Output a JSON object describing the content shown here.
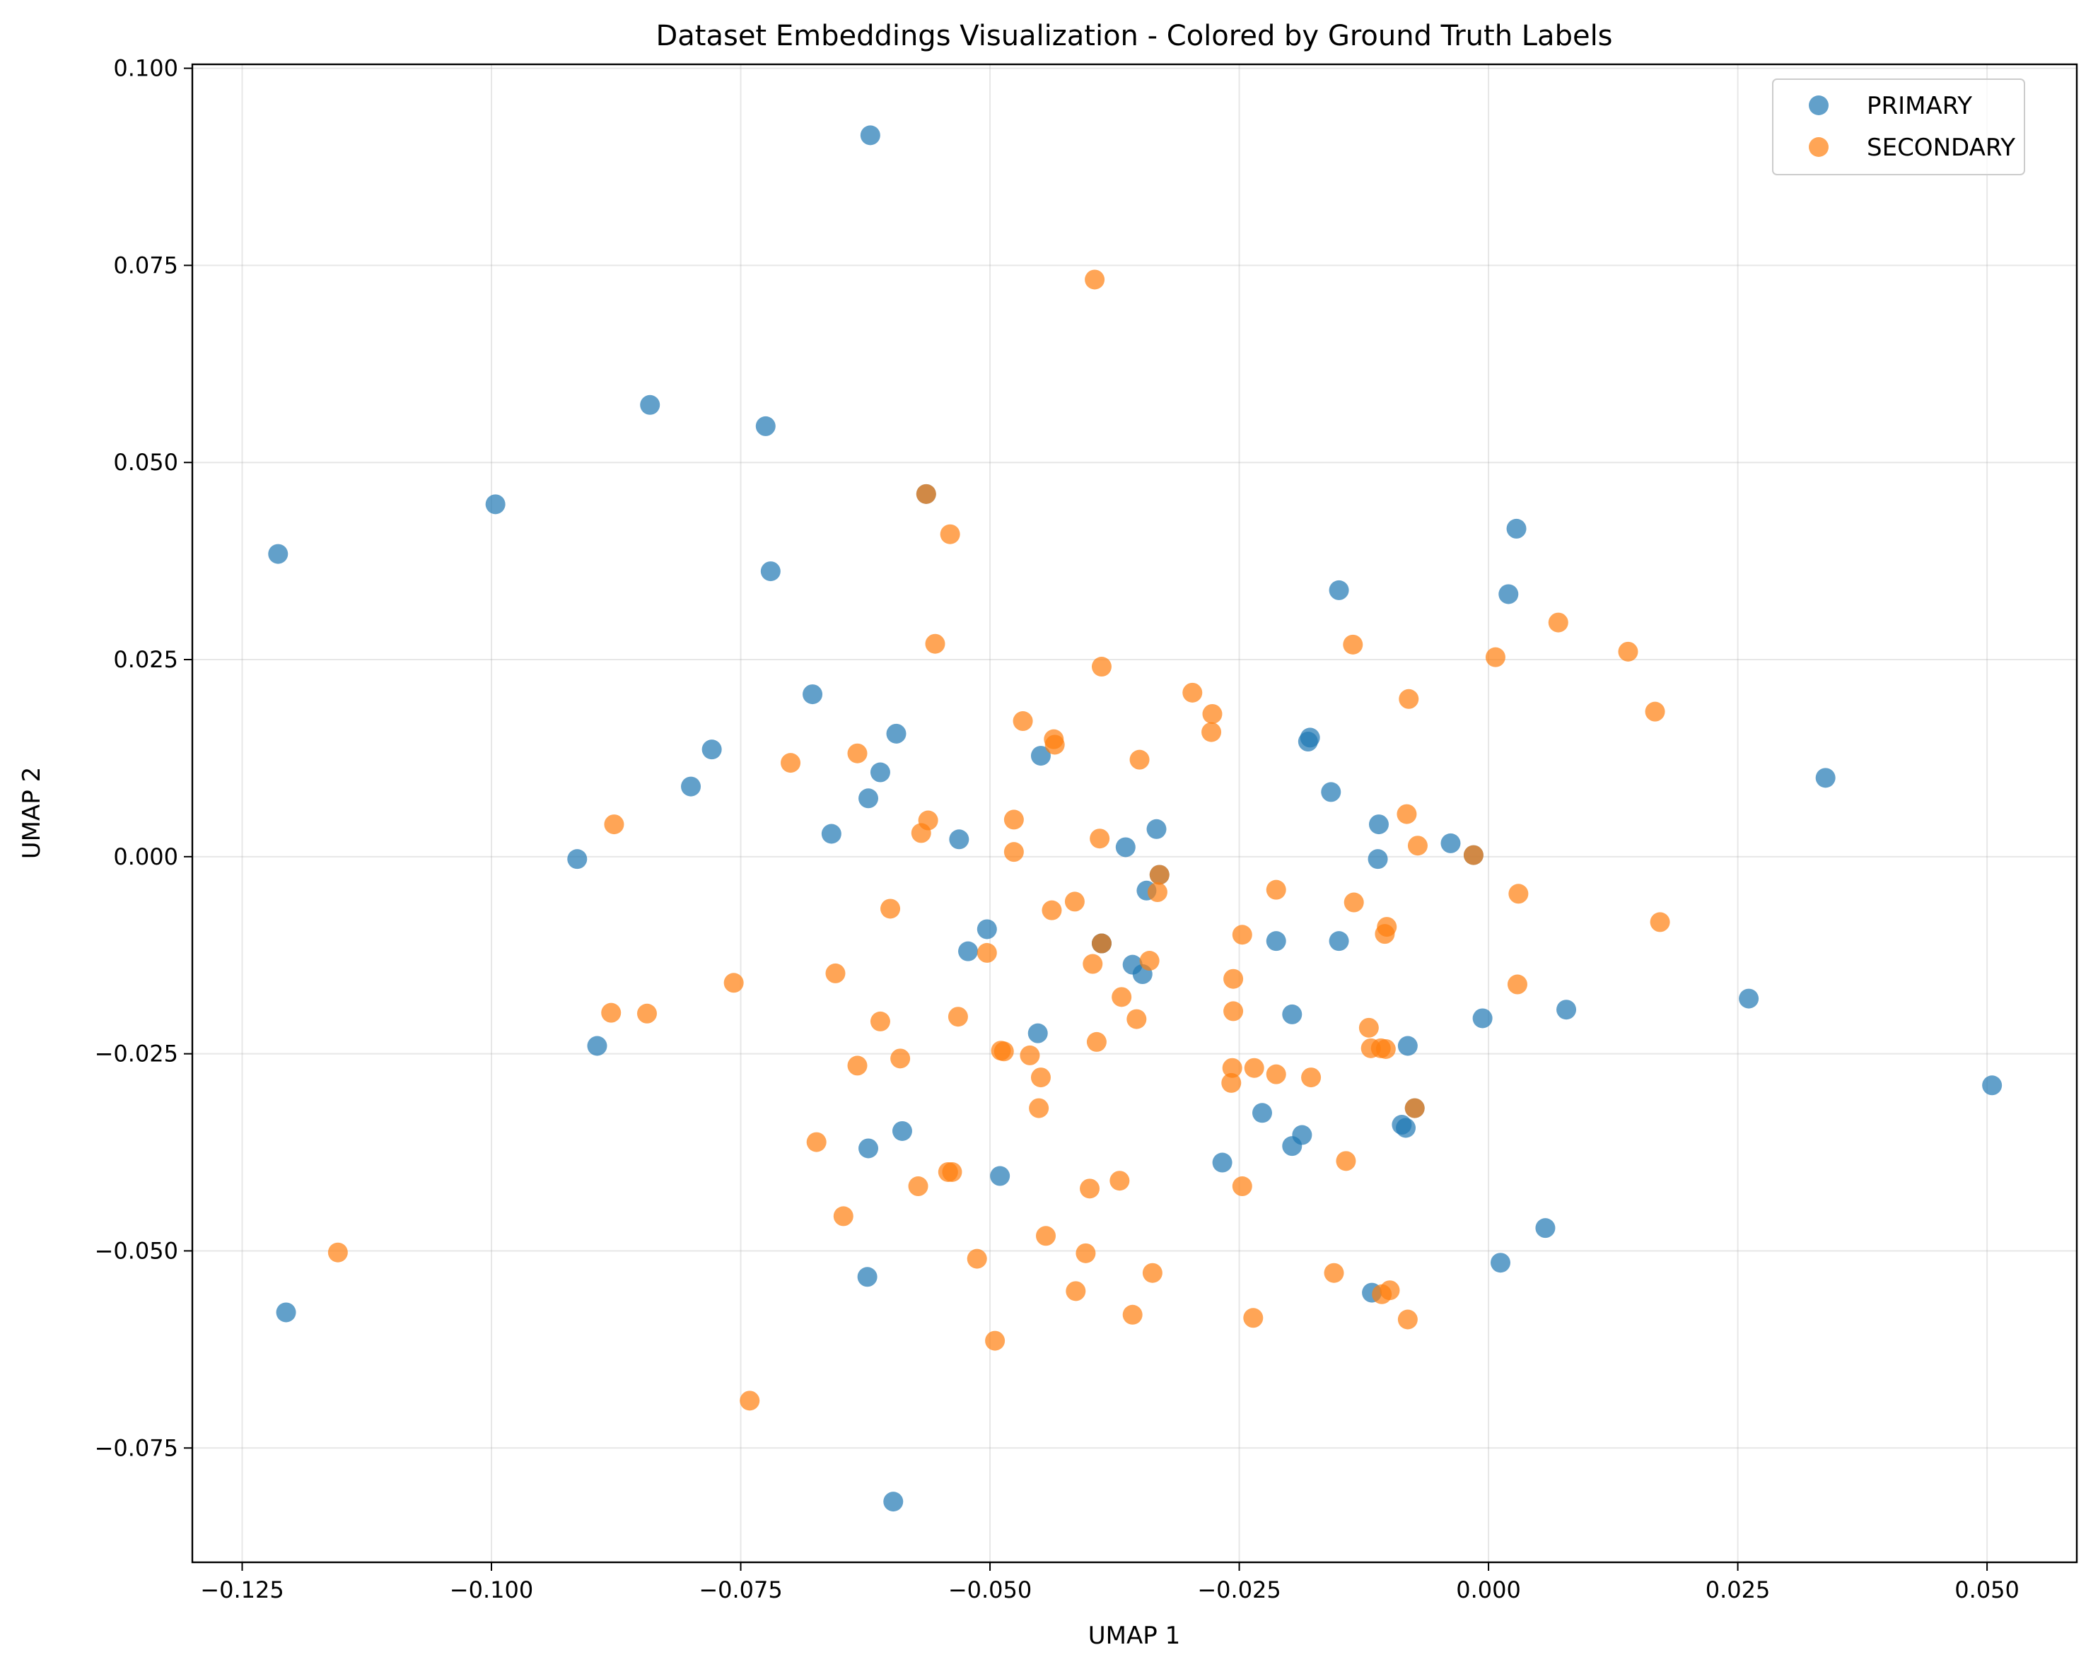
{
  "chart_data": {
    "type": "scatter",
    "title": "Dataset Embeddings Visualization - Colored by Ground Truth Labels",
    "xlabel": "UMAP 1",
    "ylabel": "UMAP 2",
    "xlim": [
      -0.13,
      0.059
    ],
    "ylim": [
      -0.0895,
      0.1005
    ],
    "xticks": [
      -0.125,
      -0.1,
      -0.075,
      -0.05,
      -0.025,
      0.0,
      0.025,
      0.05
    ],
    "xtick_labels": [
      "−0.125",
      "−0.100",
      "−0.075",
      "−0.050",
      "−0.025",
      "0.000",
      "0.025",
      "0.050"
    ],
    "yticks": [
      -0.075,
      -0.05,
      -0.025,
      0.0,
      0.025,
      0.05,
      0.075,
      0.1
    ],
    "ytick_labels": [
      "−0.075",
      "−0.050",
      "−0.025",
      "0.000",
      "0.025",
      "0.050",
      "0.075",
      "0.100"
    ],
    "grid": true,
    "legend": {
      "position": "top-right"
    },
    "series": [
      {
        "name": "PRIMARY",
        "color": "#1f77b4",
        "points": [
          [
            -0.062,
            0.0915
          ],
          [
            -0.0841,
            0.0573
          ],
          [
            -0.0725,
            0.0546
          ],
          [
            -0.0996,
            0.0447
          ],
          [
            -0.1214,
            0.0384
          ],
          [
            -0.072,
            0.0362
          ],
          [
            0.0028,
            0.0416
          ],
          [
            -0.015,
            0.0338
          ],
          [
            0.002,
            0.0333
          ],
          [
            -0.0678,
            0.0206
          ],
          [
            -0.0594,
            0.0156
          ],
          [
            -0.0779,
            0.0136
          ],
          [
            -0.0179,
            0.0151
          ],
          [
            -0.0181,
            0.0146
          ],
          [
            -0.0449,
            0.0128
          ],
          [
            -0.061,
            0.0107
          ],
          [
            -0.08,
            0.0089
          ],
          [
            -0.0622,
            0.0074
          ],
          [
            0.0338,
            0.01
          ],
          [
            -0.0158,
            0.0082
          ],
          [
            -0.011,
            0.0041
          ],
          [
            -0.0659,
            0.0029
          ],
          [
            -0.0531,
            0.0022
          ],
          [
            -0.0333,
            0.0035
          ],
          [
            -0.0364,
            0.0012
          ],
          [
            -0.0038,
            0.0017
          ],
          [
            -0.0111,
            -0.0003
          ],
          [
            -0.0914,
            -0.0003
          ],
          [
            -0.0343,
            -0.0043
          ],
          [
            -0.0503,
            -0.0092
          ],
          [
            -0.0522,
            -0.012
          ],
          [
            -0.0213,
            -0.0107
          ],
          [
            -0.015,
            -0.0107
          ],
          [
            -0.0388,
            -0.011
          ],
          [
            -0.0357,
            -0.0137
          ],
          [
            -0.0347,
            -0.0149
          ],
          [
            -0.0197,
            -0.02
          ],
          [
            -0.0006,
            -0.0205
          ],
          [
            0.0078,
            -0.0194
          ],
          [
            0.0261,
            -0.018
          ],
          [
            -0.0452,
            -0.0224
          ],
          [
            -0.0894,
            -0.024
          ],
          [
            -0.0081,
            -0.024
          ],
          [
            0.0505,
            -0.029
          ],
          [
            -0.0227,
            -0.0325
          ],
          [
            -0.0087,
            -0.034
          ],
          [
            -0.0083,
            -0.0344
          ],
          [
            -0.0187,
            -0.0353
          ],
          [
            -0.0588,
            -0.0348
          ],
          [
            -0.0622,
            -0.037
          ],
          [
            -0.0197,
            -0.0367
          ],
          [
            -0.0267,
            -0.0388
          ],
          [
            -0.049,
            -0.0405
          ],
          [
            0.0057,
            -0.0471
          ],
          [
            0.0012,
            -0.0515
          ],
          [
            -0.0623,
            -0.0533
          ],
          [
            -0.0117,
            -0.0553
          ],
          [
            -0.1206,
            -0.0578
          ],
          [
            -0.0597,
            -0.0818
          ],
          [
            -0.0564,
            0.046
          ],
          [
            -0.0388,
            -0.011
          ],
          [
            -0.033,
            -0.0023
          ],
          [
            -0.0074,
            -0.0319
          ],
          [
            -0.0015,
            0.0002
          ]
        ]
      },
      {
        "name": "SECONDARY",
        "color": "#ff7f0e",
        "points": [
          [
            -0.0395,
            0.0732
          ],
          [
            -0.0564,
            0.046
          ],
          [
            -0.054,
            0.0409
          ],
          [
            -0.0555,
            0.027
          ],
          [
            -0.0388,
            0.0241
          ],
          [
            -0.0136,
            0.0269
          ],
          [
            0.0007,
            0.0253
          ],
          [
            0.007,
            0.0297
          ],
          [
            0.014,
            0.026
          ],
          [
            -0.0297,
            0.0208
          ],
          [
            -0.0277,
            0.0181
          ],
          [
            -0.0467,
            0.0172
          ],
          [
            -0.0278,
            0.0158
          ],
          [
            -0.0436,
            0.0149
          ],
          [
            -0.008,
            0.02
          ],
          [
            0.0167,
            0.0184
          ],
          [
            -0.0633,
            0.0131
          ],
          [
            -0.07,
            0.0119
          ],
          [
            -0.0435,
            0.0142
          ],
          [
            -0.035,
            0.0123
          ],
          [
            -0.0877,
            0.0041
          ],
          [
            -0.0562,
            0.0046
          ],
          [
            -0.0569,
            0.003
          ],
          [
            -0.0476,
            0.0047
          ],
          [
            -0.039,
            0.0023
          ],
          [
            -0.0476,
            0.0006
          ],
          [
            -0.0082,
            0.0054
          ],
          [
            -0.0071,
            0.0014
          ],
          [
            -0.033,
            -0.0023
          ],
          [
            -0.0015,
            0.0002
          ],
          [
            -0.0332,
            -0.0045
          ],
          [
            -0.0213,
            -0.0042
          ],
          [
            -0.0135,
            -0.0058
          ],
          [
            0.003,
            -0.0047
          ],
          [
            -0.06,
            -0.0066
          ],
          [
            -0.0415,
            -0.0057
          ],
          [
            -0.0438,
            -0.0068
          ],
          [
            -0.0102,
            -0.0089
          ],
          [
            -0.0104,
            -0.0098
          ],
          [
            -0.0247,
            -0.0099
          ],
          [
            0.0172,
            -0.0083
          ],
          [
            -0.0388,
            -0.011
          ],
          [
            -0.0503,
            -0.0122
          ],
          [
            -0.0397,
            -0.0136
          ],
          [
            -0.034,
            -0.0132
          ],
          [
            -0.0655,
            -0.0148
          ],
          [
            -0.0757,
            -0.016
          ],
          [
            -0.0256,
            -0.0155
          ],
          [
            0.0029,
            -0.0162
          ],
          [
            -0.0368,
            -0.0178
          ],
          [
            -0.088,
            -0.0198
          ],
          [
            -0.0844,
            -0.0199
          ],
          [
            -0.0256,
            -0.0196
          ],
          [
            -0.061,
            -0.0209
          ],
          [
            -0.0532,
            -0.0203
          ],
          [
            -0.0353,
            -0.0206
          ],
          [
            -0.012,
            -0.0217
          ],
          [
            -0.0393,
            -0.0235
          ],
          [
            -0.0118,
            -0.0243
          ],
          [
            -0.0103,
            -0.0244
          ],
          [
            -0.0108,
            -0.0243
          ],
          [
            -0.0489,
            -0.0246
          ],
          [
            -0.0486,
            -0.0247
          ],
          [
            -0.046,
            -0.0252
          ],
          [
            -0.059,
            -0.0256
          ],
          [
            -0.0633,
            -0.0265
          ],
          [
            -0.0235,
            -0.0268
          ],
          [
            -0.0257,
            -0.0268
          ],
          [
            -0.0213,
            -0.0276
          ],
          [
            -0.0178,
            -0.028
          ],
          [
            -0.0449,
            -0.028
          ],
          [
            -0.0258,
            -0.0287
          ],
          [
            -0.0451,
            -0.0319
          ],
          [
            -0.0074,
            -0.0319
          ],
          [
            -0.0674,
            -0.0362
          ],
          [
            -0.0143,
            -0.0386
          ],
          [
            -0.0542,
            -0.04
          ],
          [
            -0.0538,
            -0.04
          ],
          [
            -0.037,
            -0.0411
          ],
          [
            -0.0572,
            -0.0418
          ],
          [
            -0.04,
            -0.0421
          ],
          [
            -0.0247,
            -0.0418
          ],
          [
            -0.0647,
            -0.0456
          ],
          [
            -0.0444,
            -0.0481
          ],
          [
            -0.0513,
            -0.051
          ],
          [
            -0.0404,
            -0.0503
          ],
          [
            -0.0337,
            -0.0528
          ],
          [
            -0.0155,
            -0.0528
          ],
          [
            -0.1154,
            -0.0502
          ],
          [
            -0.0414,
            -0.0551
          ],
          [
            -0.0099,
            -0.055
          ],
          [
            -0.0107,
            -0.0555
          ],
          [
            -0.0357,
            -0.0581
          ],
          [
            -0.0236,
            -0.0585
          ],
          [
            -0.0081,
            -0.0587
          ],
          [
            -0.0495,
            -0.0614
          ],
          [
            -0.0741,
            -0.069
          ]
        ]
      }
    ]
  }
}
